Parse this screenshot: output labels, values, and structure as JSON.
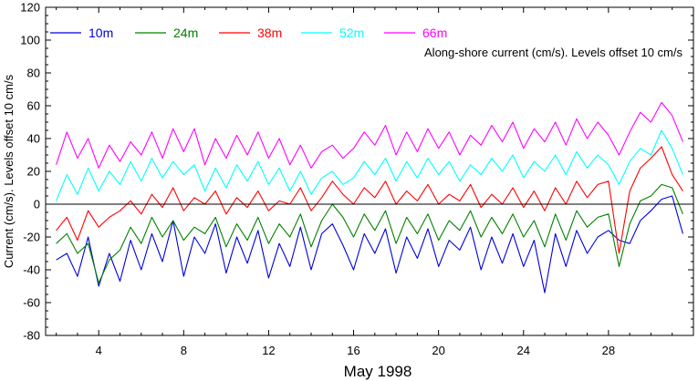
{
  "chart_data": {
    "type": "line",
    "xlabel": "May 1998",
    "ylabel": "Current (cm/s). Levels offset 10 cm/s",
    "annotation": "Along-shore current (cm/s). Levels offset 10 cm/s",
    "xlim": [
      1.5,
      32
    ],
    "ylim": [
      -80,
      120
    ],
    "x_ticks": [
      4,
      8,
      12,
      16,
      20,
      24,
      28
    ],
    "x_tick_labels": [
      "4",
      "8",
      "12",
      "16",
      "20",
      "24",
      "28"
    ],
    "y_ticks": [
      -80,
      -60,
      -40,
      -20,
      0,
      20,
      40,
      60,
      80,
      100,
      120
    ],
    "y_tick_labels": [
      "-80",
      "-60",
      "-40",
      "-20",
      "0",
      "20",
      "40",
      "60",
      "80",
      "100",
      "120"
    ],
    "zero_line": 0,
    "grid": false,
    "legend_position": "top-left, horizontal",
    "series": [
      {
        "name": "10m",
        "color": "#0000dd",
        "x": [
          2,
          2.5,
          3,
          3.5,
          4,
          4.5,
          5,
          5.5,
          6,
          6.5,
          7,
          7.5,
          8,
          8.5,
          9,
          9.5,
          10,
          10.5,
          11,
          11.5,
          12,
          12.5,
          13,
          13.5,
          14,
          14.5,
          15,
          15.5,
          16,
          16.5,
          17,
          17.5,
          18,
          18.5,
          19,
          19.5,
          20,
          20.5,
          21,
          21.5,
          22,
          22.5,
          23,
          23.5,
          24,
          24.5,
          25,
          25.5,
          26,
          26.5,
          27,
          27.5,
          28,
          28.5,
          29,
          29.5,
          30,
          30.5,
          31,
          31.5
        ],
        "values": [
          -34,
          -30,
          -44,
          -20,
          -50,
          -30,
          -47,
          -22,
          -40,
          -18,
          -35,
          -10,
          -44,
          -20,
          -30,
          -12,
          -42,
          -20,
          -36,
          -16,
          -45,
          -24,
          -38,
          -14,
          -40,
          -18,
          -12,
          -25,
          -40,
          -18,
          -30,
          -15,
          -42,
          -20,
          -33,
          -15,
          -38,
          -22,
          -28,
          -14,
          -40,
          -20,
          -36,
          -18,
          -38,
          -22,
          -54,
          -18,
          -38,
          -16,
          -30,
          -20,
          -16,
          -22,
          -24,
          -10,
          -4,
          3,
          5,
          -18
        ]
      },
      {
        "name": "24m",
        "color": "#008000",
        "x": [
          2,
          2.5,
          3,
          3.5,
          4,
          4.5,
          5,
          5.5,
          6,
          6.5,
          7,
          7.5,
          8,
          8.5,
          9,
          9.5,
          10,
          10.5,
          11,
          11.5,
          12,
          12.5,
          13,
          13.5,
          14,
          14.5,
          15,
          15.5,
          16,
          16.5,
          17,
          17.5,
          18,
          18.5,
          19,
          19.5,
          20,
          20.5,
          21,
          21.5,
          22,
          22.5,
          23,
          23.5,
          24,
          24.5,
          25,
          25.5,
          26,
          26.5,
          27,
          27.5,
          28,
          28.5,
          29,
          29.5,
          30,
          30.5,
          31,
          31.5
        ],
        "values": [
          -24,
          -18,
          -30,
          -24,
          -48,
          -34,
          -28,
          -14,
          -24,
          -8,
          -20,
          -10,
          -22,
          -14,
          -18,
          -8,
          -26,
          -12,
          -22,
          -8,
          -24,
          -12,
          -20,
          -6,
          -26,
          -10,
          0,
          -8,
          -20,
          -6,
          -16,
          -4,
          -24,
          -8,
          -18,
          -6,
          -22,
          -10,
          -16,
          -4,
          -20,
          -8,
          -18,
          -6,
          -20,
          -10,
          -26,
          -6,
          -22,
          -4,
          -14,
          -8,
          -6,
          -38,
          -12,
          2,
          5,
          12,
          10,
          -6
        ]
      },
      {
        "name": "38m",
        "color": "#ff0000",
        "x": [
          2,
          2.5,
          3,
          3.5,
          4,
          4.5,
          5,
          5.5,
          6,
          6.5,
          7,
          7.5,
          8,
          8.5,
          9,
          9.5,
          10,
          10.5,
          11,
          11.5,
          12,
          12.5,
          13,
          13.5,
          14,
          14.5,
          15,
          15.5,
          16,
          16.5,
          17,
          17.5,
          18,
          18.5,
          19,
          19.5,
          20,
          20.5,
          21,
          21.5,
          22,
          22.5,
          23,
          23.5,
          24,
          24.5,
          25,
          25.5,
          26,
          26.5,
          27,
          27.5,
          28,
          28.5,
          29,
          29.5,
          30,
          30.5,
          31,
          31.5
        ],
        "values": [
          -16,
          -8,
          -22,
          -4,
          -14,
          -8,
          -4,
          2,
          -6,
          6,
          -2,
          10,
          -4,
          4,
          0,
          8,
          -6,
          4,
          -2,
          8,
          -4,
          2,
          0,
          10,
          -4,
          4,
          14,
          6,
          0,
          10,
          4,
          14,
          0,
          8,
          2,
          12,
          0,
          6,
          2,
          12,
          -2,
          6,
          0,
          10,
          -2,
          8,
          -4,
          10,
          0,
          14,
          4,
          12,
          14,
          -30,
          8,
          22,
          28,
          35,
          18,
          8
        ]
      },
      {
        "name": "52m",
        "color": "#00ffff",
        "x": [
          2,
          2.5,
          3,
          3.5,
          4,
          4.5,
          5,
          5.5,
          6,
          6.5,
          7,
          7.5,
          8,
          8.5,
          9,
          9.5,
          10,
          10.5,
          11,
          11.5,
          12,
          12.5,
          13,
          13.5,
          14,
          14.5,
          15,
          15.5,
          16,
          16.5,
          17,
          17.5,
          18,
          18.5,
          19,
          19.5,
          20,
          20.5,
          21,
          21.5,
          22,
          22.5,
          23,
          23.5,
          24,
          24.5,
          25,
          25.5,
          26,
          26.5,
          27,
          27.5,
          28,
          28.5,
          29,
          29.5,
          30,
          30.5,
          31,
          31.5
        ],
        "values": [
          2,
          18,
          6,
          22,
          8,
          20,
          12,
          26,
          14,
          28,
          16,
          26,
          18,
          24,
          8,
          22,
          10,
          24,
          14,
          26,
          12,
          22,
          8,
          20,
          6,
          16,
          20,
          12,
          16,
          26,
          18,
          28,
          14,
          26,
          16,
          28,
          18,
          26,
          14,
          24,
          18,
          28,
          20,
          30,
          16,
          26,
          20,
          30,
          18,
          32,
          22,
          30,
          24,
          12,
          26,
          34,
          30,
          45,
          34,
          18
        ]
      },
      {
        "name": "66m",
        "color": "#ff00ff",
        "x": [
          2,
          2.5,
          3,
          3.5,
          4,
          4.5,
          5,
          5.5,
          6,
          6.5,
          7,
          7.5,
          8,
          8.5,
          9,
          9.5,
          10,
          10.5,
          11,
          11.5,
          12,
          12.5,
          13,
          13.5,
          14,
          14.5,
          15,
          15.5,
          16,
          16.5,
          17,
          17.5,
          18,
          18.5,
          19,
          19.5,
          20,
          20.5,
          21,
          21.5,
          22,
          22.5,
          23,
          23.5,
          24,
          24.5,
          25,
          25.5,
          26,
          26.5,
          27,
          27.5,
          28,
          28.5,
          29,
          29.5,
          30,
          30.5,
          31,
          31.5
        ],
        "values": [
          24,
          44,
          28,
          40,
          22,
          36,
          26,
          38,
          30,
          44,
          28,
          46,
          32,
          46,
          24,
          40,
          28,
          42,
          30,
          44,
          28,
          40,
          24,
          36,
          22,
          32,
          36,
          28,
          34,
          44,
          36,
          48,
          30,
          44,
          32,
          46,
          34,
          44,
          30,
          42,
          36,
          48,
          38,
          50,
          34,
          46,
          38,
          50,
          36,
          52,
          40,
          50,
          42,
          30,
          44,
          56,
          50,
          62,
          54,
          38
        ]
      }
    ]
  }
}
